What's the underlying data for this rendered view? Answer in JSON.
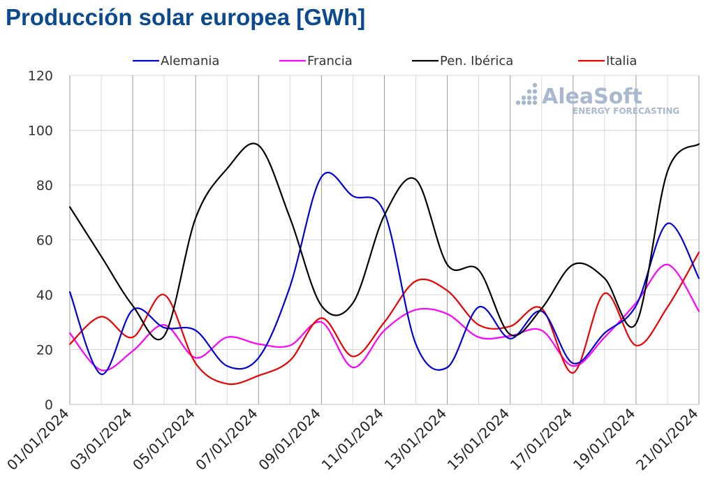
{
  "title": "Producción solar europea [GWh]",
  "logo": {
    "name": "AleaSoft",
    "tagline": "ENERGY FORECASTING"
  },
  "chart_data": {
    "type": "line",
    "title": "Producción solar europea [GWh]",
    "ylim": [
      0,
      120
    ],
    "yticks": [
      0,
      20,
      40,
      60,
      80,
      100,
      120
    ],
    "x": [
      "01/01/2024",
      "02/01/2024",
      "03/01/2024",
      "04/01/2024",
      "05/01/2024",
      "06/01/2024",
      "07/01/2024",
      "08/01/2024",
      "09/01/2024",
      "10/01/2024",
      "11/01/2024",
      "12/01/2024",
      "13/01/2024",
      "14/01/2024",
      "15/01/2024",
      "16/01/2024",
      "17/01/2024",
      "18/01/2024",
      "19/01/2024",
      "20/01/2024",
      "21/01/2024"
    ],
    "xtick_labels": [
      "01/01/2024",
      "03/01/2024",
      "05/01/2024",
      "07/01/2024",
      "09/01/2024",
      "11/01/2024",
      "13/01/2024",
      "15/01/2024",
      "17/01/2024",
      "19/01/2024",
      "21/01/2024"
    ],
    "grid": true,
    "legend_position": "top",
    "series": [
      {
        "name": "Alemania",
        "color": "#0000dd",
        "values": [
          41,
          11,
          34.5,
          28,
          27,
          14,
          17,
          43,
          83,
          76,
          70,
          22,
          13.5,
          35.5,
          24,
          34,
          15,
          26,
          36,
          66,
          46
        ]
      },
      {
        "name": "Francia",
        "color": "#ff00ff",
        "values": [
          26,
          12.5,
          19.5,
          29,
          17,
          24.5,
          22,
          21.5,
          30,
          13.5,
          27,
          34.5,
          33,
          24.5,
          25,
          27,
          14,
          24.5,
          37,
          51,
          34
        ]
      },
      {
        "name": "Pen. Ibérica",
        "color": "#000000",
        "values": [
          72,
          54,
          36,
          25,
          68,
          86,
          94.5,
          68,
          36,
          37,
          69,
          82,
          51,
          49,
          25.5,
          35,
          51,
          46,
          29.5,
          85,
          95
        ]
      },
      {
        "name": "Italia",
        "color": "#ee0000",
        "values": [
          22,
          32,
          24.5,
          40,
          15,
          7.5,
          10.5,
          16,
          31.5,
          17.5,
          30,
          45,
          41.5,
          29,
          28.5,
          35,
          11.5,
          40.5,
          21.5,
          35.5,
          55.5
        ]
      }
    ]
  }
}
